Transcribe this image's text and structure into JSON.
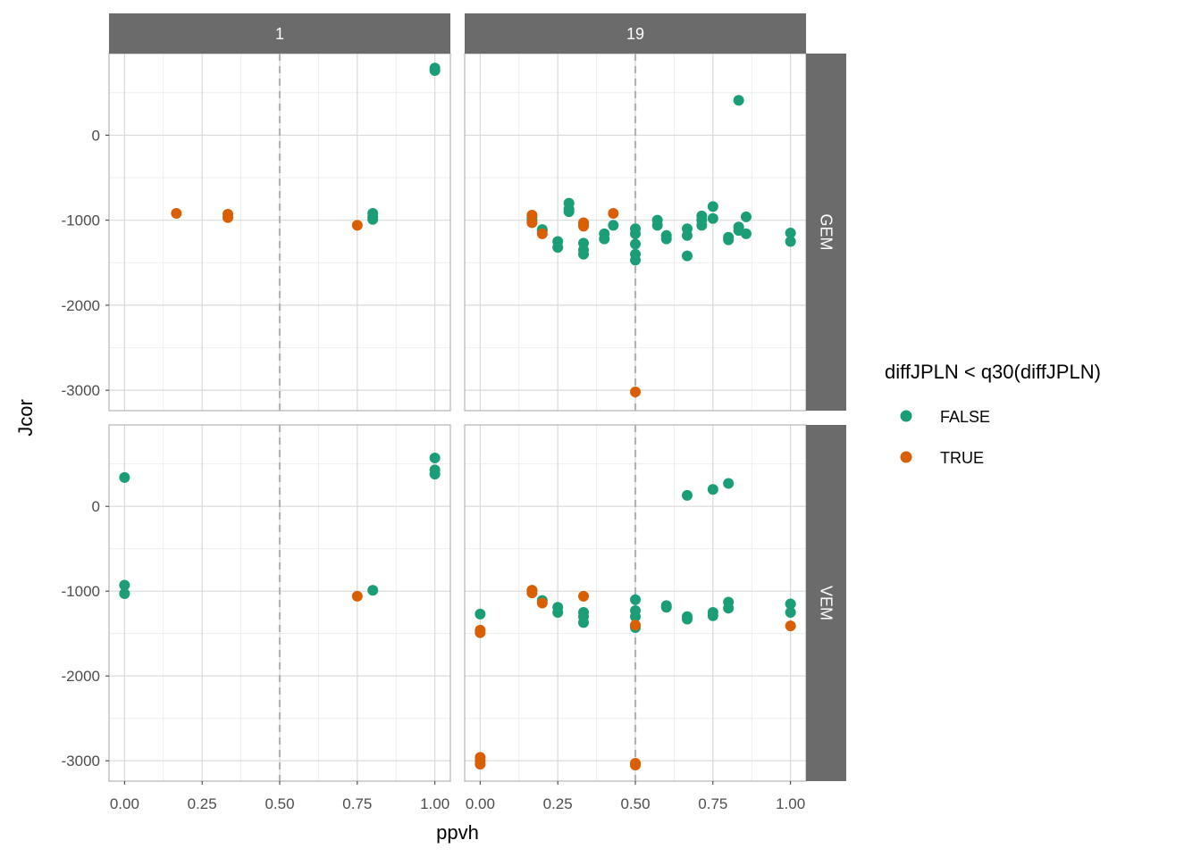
{
  "chart_data": {
    "type": "scatter",
    "xlabel": "ppvh",
    "ylabel": "Jcor",
    "xlim": [
      -0.05,
      1.05
    ],
    "ylim": [
      -3240,
      960
    ],
    "x_ticks": [
      0,
      0.25,
      0.5,
      0.75,
      1
    ],
    "x_tick_labels": [
      "0.00",
      "0.25",
      "0.50",
      "0.75",
      "1.00"
    ],
    "y_ticks": [
      -3000,
      -2000,
      -1000,
      0
    ],
    "y_tick_labels": [
      "-3000",
      "-2000",
      "-1000",
      "0"
    ],
    "reference_line": {
      "axis": "x",
      "value": 0.5,
      "style": "dashed"
    },
    "grid": true,
    "legend_position": "right",
    "legend_title": "diffJPLN < q30(diffJPLN)",
    "column_strips": [
      "1",
      "19"
    ],
    "row_strips": [
      "GEM",
      "VEM"
    ],
    "series": [
      {
        "name": "FALSE",
        "color": "#1B9E77"
      },
      {
        "name": "TRUE",
        "color": "#D95F02"
      }
    ],
    "panels": [
      {
        "col": "1",
        "row": "GEM",
        "points": [
          {
            "x": 1.0,
            "y": 760,
            "s": "FALSE"
          },
          {
            "x": 1.0,
            "y": 790,
            "s": "FALSE"
          },
          {
            "x": 0.8,
            "y": -920,
            "s": "FALSE"
          },
          {
            "x": 0.8,
            "y": -960,
            "s": "FALSE"
          },
          {
            "x": 0.8,
            "y": -990,
            "s": "FALSE"
          },
          {
            "x": 0.167,
            "y": -920,
            "s": "TRUE"
          },
          {
            "x": 0.333,
            "y": -930,
            "s": "TRUE"
          },
          {
            "x": 0.333,
            "y": -970,
            "s": "TRUE"
          },
          {
            "x": 0.75,
            "y": -1060,
            "s": "TRUE"
          }
        ]
      },
      {
        "col": "19",
        "row": "GEM",
        "points": [
          {
            "x": 0.167,
            "y": -960,
            "s": "FALSE"
          },
          {
            "x": 0.167,
            "y": -1000,
            "s": "FALSE"
          },
          {
            "x": 0.2,
            "y": -1110,
            "s": "FALSE"
          },
          {
            "x": 0.2,
            "y": -1130,
            "s": "FALSE"
          },
          {
            "x": 0.25,
            "y": -1250,
            "s": "FALSE"
          },
          {
            "x": 0.25,
            "y": -1320,
            "s": "FALSE"
          },
          {
            "x": 0.286,
            "y": -800,
            "s": "FALSE"
          },
          {
            "x": 0.286,
            "y": -870,
            "s": "FALSE"
          },
          {
            "x": 0.286,
            "y": -900,
            "s": "FALSE"
          },
          {
            "x": 0.333,
            "y": -1050,
            "s": "FALSE"
          },
          {
            "x": 0.333,
            "y": -1270,
            "s": "FALSE"
          },
          {
            "x": 0.333,
            "y": -1350,
            "s": "FALSE"
          },
          {
            "x": 0.333,
            "y": -1400,
            "s": "FALSE"
          },
          {
            "x": 0.4,
            "y": -1160,
            "s": "FALSE"
          },
          {
            "x": 0.4,
            "y": -1220,
            "s": "FALSE"
          },
          {
            "x": 0.429,
            "y": -1060,
            "s": "FALSE"
          },
          {
            "x": 0.5,
            "y": -1100,
            "s": "FALSE"
          },
          {
            "x": 0.5,
            "y": -1160,
            "s": "FALSE"
          },
          {
            "x": 0.5,
            "y": -1280,
            "s": "FALSE"
          },
          {
            "x": 0.5,
            "y": -1400,
            "s": "FALSE"
          },
          {
            "x": 0.5,
            "y": -1470,
            "s": "FALSE"
          },
          {
            "x": 0.571,
            "y": -1000,
            "s": "FALSE"
          },
          {
            "x": 0.571,
            "y": -1060,
            "s": "FALSE"
          },
          {
            "x": 0.6,
            "y": -1180,
            "s": "FALSE"
          },
          {
            "x": 0.6,
            "y": -1220,
            "s": "FALSE"
          },
          {
            "x": 0.667,
            "y": -1100,
            "s": "FALSE"
          },
          {
            "x": 0.667,
            "y": -1180,
            "s": "FALSE"
          },
          {
            "x": 0.667,
            "y": -1420,
            "s": "FALSE"
          },
          {
            "x": 0.714,
            "y": -950,
            "s": "FALSE"
          },
          {
            "x": 0.714,
            "y": -1000,
            "s": "FALSE"
          },
          {
            "x": 0.714,
            "y": -1060,
            "s": "FALSE"
          },
          {
            "x": 0.75,
            "y": -840,
            "s": "FALSE"
          },
          {
            "x": 0.75,
            "y": -980,
            "s": "FALSE"
          },
          {
            "x": 0.8,
            "y": -1200,
            "s": "FALSE"
          },
          {
            "x": 0.8,
            "y": -1230,
            "s": "FALSE"
          },
          {
            "x": 0.833,
            "y": 410,
            "s": "FALSE"
          },
          {
            "x": 0.833,
            "y": -1080,
            "s": "FALSE"
          },
          {
            "x": 0.833,
            "y": -1120,
            "s": "FALSE"
          },
          {
            "x": 0.857,
            "y": -960,
            "s": "FALSE"
          },
          {
            "x": 0.857,
            "y": -1160,
            "s": "FALSE"
          },
          {
            "x": 1.0,
            "y": -1150,
            "s": "FALSE"
          },
          {
            "x": 1.0,
            "y": -1250,
            "s": "FALSE"
          },
          {
            "x": 0.167,
            "y": -940,
            "s": "TRUE"
          },
          {
            "x": 0.167,
            "y": -1030,
            "s": "TRUE"
          },
          {
            "x": 0.2,
            "y": -1160,
            "s": "TRUE"
          },
          {
            "x": 0.333,
            "y": -1030,
            "s": "TRUE"
          },
          {
            "x": 0.333,
            "y": -1070,
            "s": "TRUE"
          },
          {
            "x": 0.429,
            "y": -920,
            "s": "TRUE"
          },
          {
            "x": 0.5,
            "y": -3020,
            "s": "TRUE"
          }
        ]
      },
      {
        "col": "1",
        "row": "VEM",
        "points": [
          {
            "x": 0.0,
            "y": 340,
            "s": "FALSE"
          },
          {
            "x": 0.0,
            "y": -930,
            "s": "FALSE"
          },
          {
            "x": 0.0,
            "y": -1030,
            "s": "FALSE"
          },
          {
            "x": 1.0,
            "y": 570,
            "s": "FALSE"
          },
          {
            "x": 1.0,
            "y": 430,
            "s": "FALSE"
          },
          {
            "x": 1.0,
            "y": 380,
            "s": "FALSE"
          },
          {
            "x": 0.8,
            "y": -990,
            "s": "FALSE"
          },
          {
            "x": 0.75,
            "y": -1060,
            "s": "TRUE"
          }
        ]
      },
      {
        "col": "19",
        "row": "VEM",
        "points": [
          {
            "x": 0.0,
            "y": -1270,
            "s": "FALSE"
          },
          {
            "x": 0.167,
            "y": -990,
            "s": "FALSE"
          },
          {
            "x": 0.2,
            "y": -1110,
            "s": "FALSE"
          },
          {
            "x": 0.25,
            "y": -1190,
            "s": "FALSE"
          },
          {
            "x": 0.25,
            "y": -1250,
            "s": "FALSE"
          },
          {
            "x": 0.333,
            "y": -1250,
            "s": "FALSE"
          },
          {
            "x": 0.333,
            "y": -1300,
            "s": "FALSE"
          },
          {
            "x": 0.333,
            "y": -1370,
            "s": "FALSE"
          },
          {
            "x": 0.5,
            "y": -1100,
            "s": "FALSE"
          },
          {
            "x": 0.5,
            "y": -1230,
            "s": "FALSE"
          },
          {
            "x": 0.5,
            "y": -1300,
            "s": "FALSE"
          },
          {
            "x": 0.5,
            "y": -1430,
            "s": "FALSE"
          },
          {
            "x": 0.6,
            "y": -1170,
            "s": "FALSE"
          },
          {
            "x": 0.6,
            "y": -1190,
            "s": "FALSE"
          },
          {
            "x": 0.667,
            "y": 130,
            "s": "FALSE"
          },
          {
            "x": 0.667,
            "y": -1300,
            "s": "FALSE"
          },
          {
            "x": 0.667,
            "y": -1330,
            "s": "FALSE"
          },
          {
            "x": 0.75,
            "y": 200,
            "s": "FALSE"
          },
          {
            "x": 0.75,
            "y": -1250,
            "s": "FALSE"
          },
          {
            "x": 0.75,
            "y": -1290,
            "s": "FALSE"
          },
          {
            "x": 0.8,
            "y": 270,
            "s": "FALSE"
          },
          {
            "x": 0.8,
            "y": -1130,
            "s": "FALSE"
          },
          {
            "x": 0.8,
            "y": -1200,
            "s": "FALSE"
          },
          {
            "x": 1.0,
            "y": -1150,
            "s": "FALSE"
          },
          {
            "x": 1.0,
            "y": -1250,
            "s": "FALSE"
          },
          {
            "x": 0.0,
            "y": -1460,
            "s": "TRUE"
          },
          {
            "x": 0.0,
            "y": -1490,
            "s": "TRUE"
          },
          {
            "x": 0.0,
            "y": -2960,
            "s": "TRUE"
          },
          {
            "x": 0.0,
            "y": -3000,
            "s": "TRUE"
          },
          {
            "x": 0.0,
            "y": -3040,
            "s": "TRUE"
          },
          {
            "x": 0.167,
            "y": -990,
            "s": "TRUE"
          },
          {
            "x": 0.167,
            "y": -1020,
            "s": "TRUE"
          },
          {
            "x": 0.2,
            "y": -1140,
            "s": "TRUE"
          },
          {
            "x": 0.333,
            "y": -1060,
            "s": "TRUE"
          },
          {
            "x": 0.5,
            "y": -1400,
            "s": "TRUE"
          },
          {
            "x": 0.5,
            "y": -3030,
            "s": "TRUE"
          },
          {
            "x": 0.5,
            "y": -3050,
            "s": "TRUE"
          },
          {
            "x": 1.0,
            "y": -1410,
            "s": "TRUE"
          }
        ]
      }
    ]
  }
}
